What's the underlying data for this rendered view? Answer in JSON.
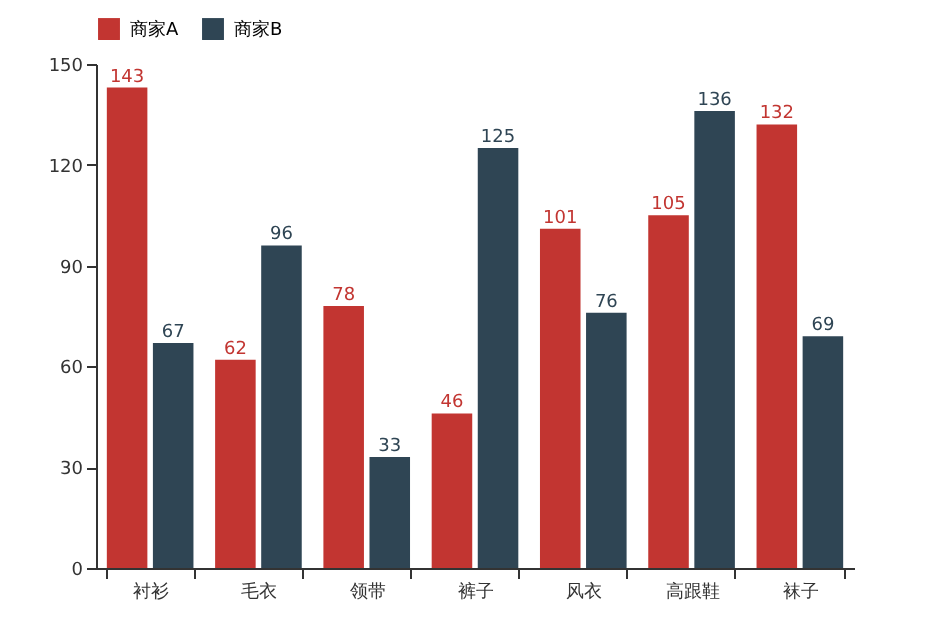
{
  "chart_data": {
    "type": "bar",
    "categories": [
      "衬衫",
      "毛衣",
      "领带",
      "裤子",
      "风衣",
      "高跟鞋",
      "袜子"
    ],
    "series": [
      {
        "name": "商家A",
        "color": "#c23531",
        "values": [
          143,
          62,
          78,
          46,
          101,
          105,
          132
        ]
      },
      {
        "name": "商家B",
        "color": "#2f4554",
        "values": [
          67,
          96,
          33,
          125,
          76,
          136,
          69
        ]
      }
    ],
    "ylim": [
      0,
      150
    ],
    "yticks": [
      0,
      30,
      60,
      90,
      120,
      150
    ],
    "grid": false,
    "legend": "top",
    "data_labels": true
  }
}
